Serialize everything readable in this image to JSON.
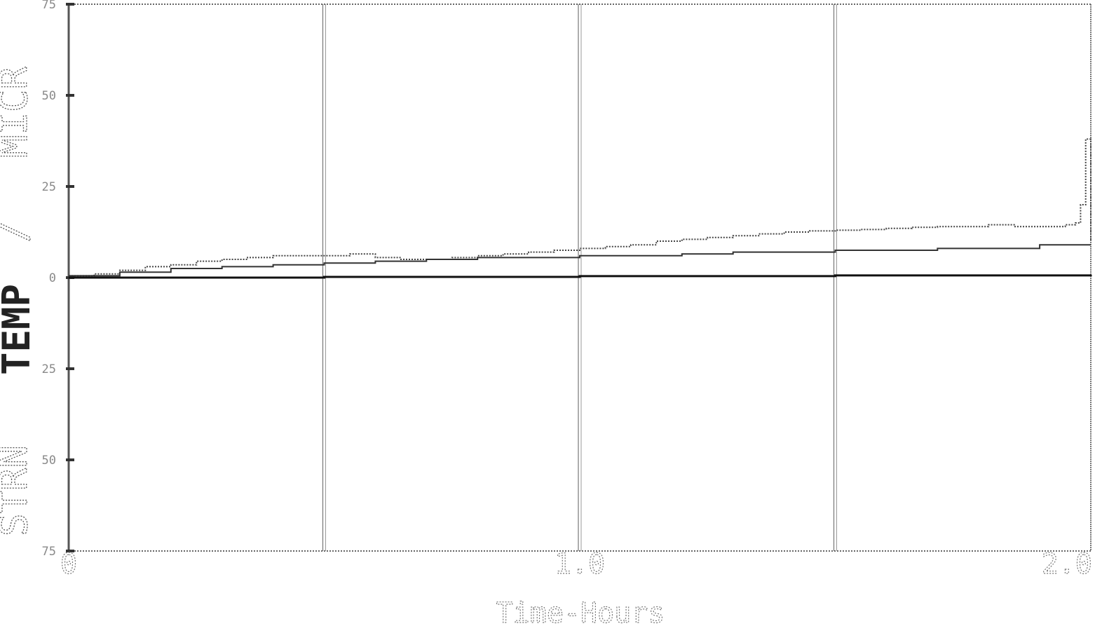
{
  "chart_data": {
    "type": "line",
    "title": "",
    "xlabel": "Time-Hours",
    "ylabel_parts": [
      "STRN",
      "TEMP",
      "/",
      "MICR"
    ],
    "xlim": [
      0,
      2.0
    ],
    "ylim": [
      -75,
      75
    ],
    "x_tick_values": [
      0,
      1.0,
      2.0
    ],
    "x_tick_labels": [
      "0",
      "1.0",
      "2.0"
    ],
    "y_tick_values": [
      75,
      50,
      25,
      0,
      -25,
      -50,
      -75
    ],
    "y_tick_labels": [
      "75",
      "50",
      "25",
      "0",
      "25",
      "50",
      "75"
    ],
    "vertical_gridlines_x": [
      0.5,
      1.0,
      1.5
    ],
    "grid": "vertical",
    "legend": "none",
    "series": [
      {
        "color": "#444444",
        "style": "dotted",
        "x": [
          0,
          0.05,
          0.1,
          0.15,
          0.2,
          0.25,
          0.3,
          0.35,
          0.4,
          0.45,
          0.5,
          0.55,
          0.6,
          0.65,
          0.7,
          0.75,
          0.8,
          0.85,
          0.9,
          0.95,
          1.0,
          1.05,
          1.1,
          1.15,
          1.2,
          1.25,
          1.3,
          1.35,
          1.4,
          1.45,
          1.5,
          1.55,
          1.6,
          1.65,
          1.7,
          1.75,
          1.8,
          1.85,
          1.9,
          1.95,
          1.97,
          1.98,
          1.99,
          2.0
        ],
        "y": [
          0.5,
          1.0,
          2.0,
          3.0,
          3.5,
          4.5,
          5.0,
          5.5,
          6.0,
          6.0,
          6.0,
          6.5,
          5.5,
          5.0,
          5.0,
          5.5,
          6.0,
          6.5,
          7.0,
          7.5,
          8.0,
          8.5,
          9.0,
          10.0,
          10.5,
          11.0,
          11.5,
          12.0,
          12.5,
          12.8,
          13.0,
          13.2,
          13.5,
          13.8,
          14.0,
          14.0,
          14.5,
          14.0,
          14.0,
          14.5,
          15.0,
          20.0,
          38.0,
          10.0
        ]
      },
      {
        "color": "#333333",
        "style": "solid",
        "x": [
          0,
          0.1,
          0.2,
          0.3,
          0.4,
          0.5,
          0.6,
          0.7,
          0.8,
          0.9,
          1.0,
          1.1,
          1.2,
          1.3,
          1.4,
          1.5,
          1.6,
          1.7,
          1.8,
          1.9,
          2.0
        ],
        "y": [
          0.5,
          1.5,
          2.5,
          3.0,
          3.5,
          4.0,
          4.5,
          5.0,
          5.5,
          5.5,
          6.0,
          6.0,
          6.5,
          7.0,
          7.0,
          7.5,
          7.5,
          8.0,
          8.0,
          9.0,
          9.0
        ]
      },
      {
        "color": "#111111",
        "style": "solid",
        "x": [
          0,
          0.5,
          1.0,
          1.5,
          2.0
        ],
        "y": [
          0,
          0.2,
          0.4,
          0.6,
          0.8
        ]
      }
    ]
  }
}
